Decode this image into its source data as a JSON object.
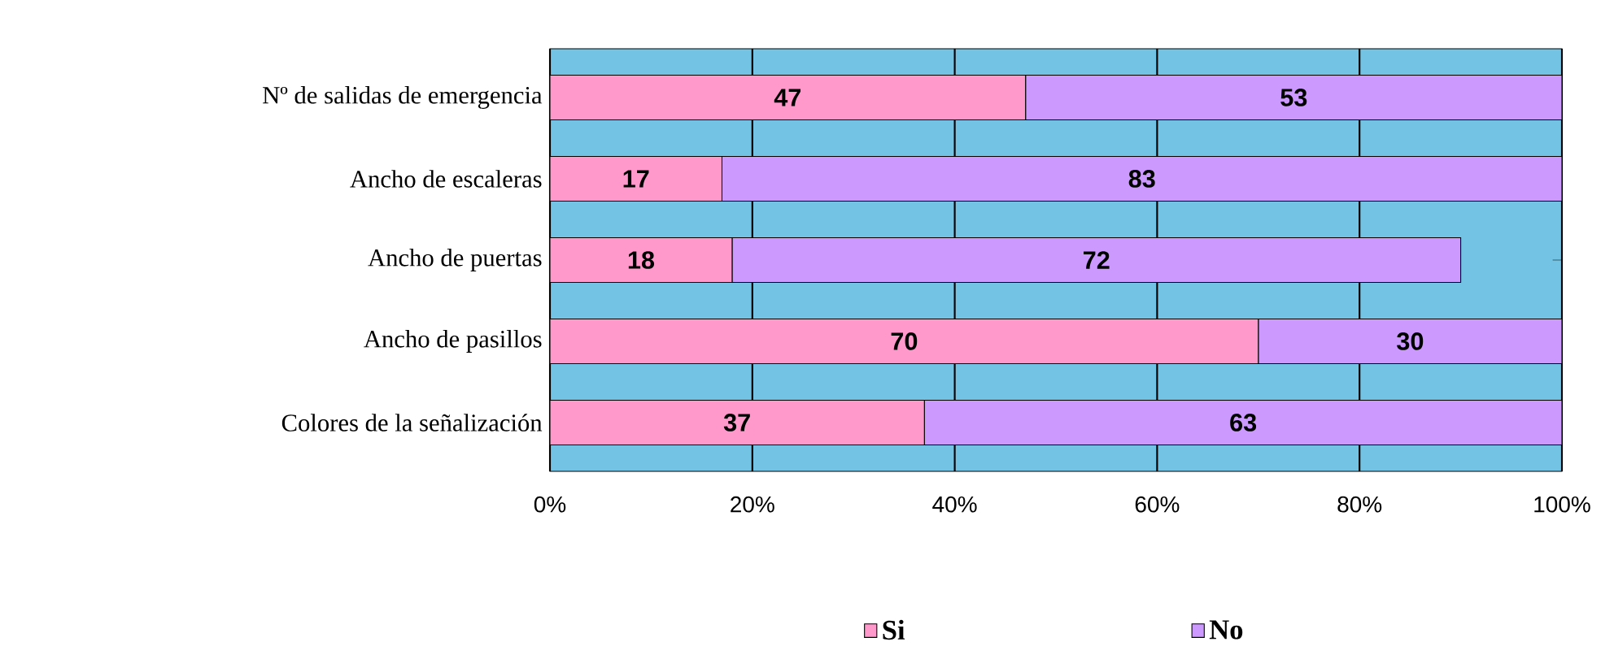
{
  "chart_data": {
    "type": "bar",
    "orientation": "horizontal",
    "stacked": true,
    "categories": [
      "Nº de salidas de emergencia",
      "Ancho de escaleras",
      "Ancho de puertas",
      "Ancho de pasillos",
      "Colores de la señalización"
    ],
    "series": [
      {
        "name": "Si",
        "color": "#ff99cc",
        "values": [
          47,
          17,
          18,
          70,
          37
        ],
        "value_labels": [
          "47",
          "17",
          "18",
          "70",
          "37"
        ]
      },
      {
        "name": "No",
        "color": "#cc99ff",
        "values": [
          53,
          83,
          72,
          30,
          63
        ],
        "value_labels": [
          "53",
          "83",
          "72",
          "30",
          "63"
        ]
      }
    ],
    "xlim": [
      0,
      100
    ],
    "xticks": [
      {
        "value": 0,
        "label": "0%"
      },
      {
        "value": 20,
        "label": "20%"
      },
      {
        "value": 40,
        "label": "40%"
      },
      {
        "value": 60,
        "label": "60%"
      },
      {
        "value": 80,
        "label": "80%"
      },
      {
        "value": 100,
        "label": "100%"
      }
    ],
    "grid": "x",
    "legend": "bottom"
  }
}
